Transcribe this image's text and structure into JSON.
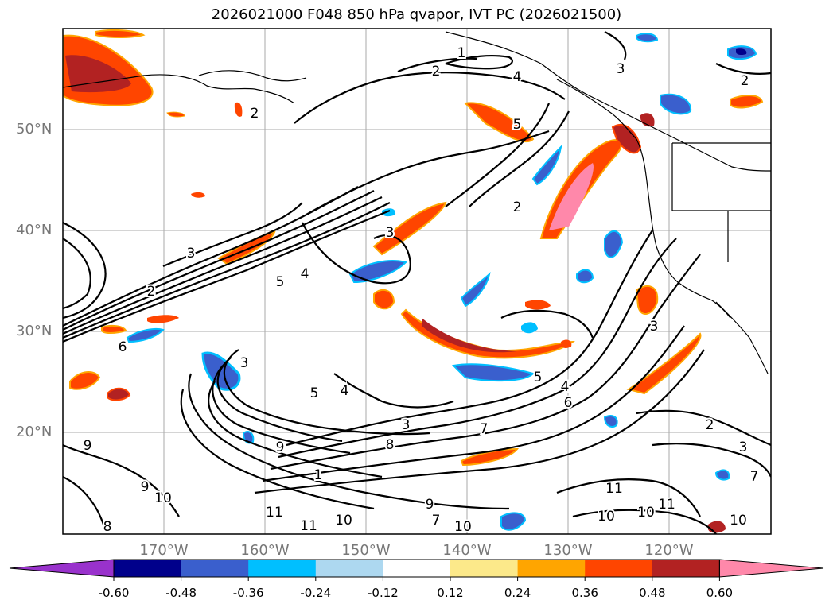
{
  "title": "2026021000 F048 850 hPa qvapor, IVT PC (2026021500)",
  "map": {
    "lat_labels": [
      "50°N",
      "40°N",
      "30°N",
      "20°N"
    ],
    "lon_labels": [
      "170°W",
      "160°W",
      "150°W",
      "140°W",
      "130°W",
      "120°W"
    ],
    "contour_labels": [
      "1",
      "2",
      "2",
      "4",
      "5",
      "2",
      "3",
      "4",
      "5",
      "3",
      "2",
      "6",
      "3",
      "5",
      "4",
      "3",
      "5",
      "6",
      "4",
      "3",
      "2",
      "3",
      "9",
      "8",
      "9",
      "1",
      "7",
      "10",
      "11",
      "11",
      "10",
      "8",
      "7",
      "10",
      "11",
      "10",
      "11",
      "10",
      "7",
      "9",
      "10",
      "2",
      "9",
      "3"
    ]
  },
  "colorbar": {
    "ticks": [
      "-0.60",
      "-0.48",
      "-0.36",
      "-0.24",
      "-0.12",
      "0.12",
      "0.24",
      "0.36",
      "0.48",
      "0.60"
    ],
    "colors": [
      "#9932cc",
      "#00008b",
      "#3a5fcd",
      "#00bfff",
      "#add8f0",
      "#ffffff",
      "#fce98a",
      "#ffa500",
      "#ff4500",
      "#b22222",
      "#ff88aa",
      "#ff88aa"
    ]
  }
}
